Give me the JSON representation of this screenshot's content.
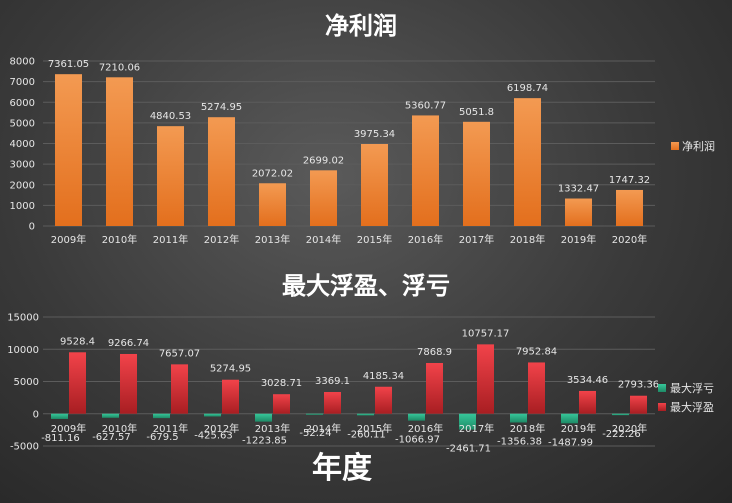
{
  "chart_data": [
    {
      "type": "bar",
      "title": "净利润",
      "categories": [
        "2009年",
        "2010年",
        "2011年",
        "2012年",
        "2013年",
        "2014年",
        "2015年",
        "2016年",
        "2017年",
        "2018年",
        "2019年",
        "2020年"
      ],
      "series": [
        {
          "name": "净利润",
          "values": [
            7361.05,
            7210.06,
            4840.53,
            5274.95,
            2072.02,
            2699.02,
            3975.34,
            5360.77,
            5051.8,
            6198.74,
            1332.47,
            1747.32
          ],
          "color": "#ec7a2c"
        }
      ],
      "ylim": [
        0,
        8000
      ],
      "yticks": [
        0,
        1000,
        2000,
        3000,
        4000,
        5000,
        6000,
        7000,
        8000
      ],
      "grid": true,
      "legend": "right"
    },
    {
      "type": "bar",
      "title": "最大浮盈、浮亏",
      "xlabel": "年度",
      "categories": [
        "2009年",
        "2010年",
        "2011年",
        "2012年",
        "2013年",
        "2014年",
        "2015年",
        "2016年",
        "2017年",
        "2018年",
        "2019年",
        "2020年"
      ],
      "series": [
        {
          "name": "最大浮亏",
          "values": [
            -811.16,
            -627.57,
            -679.5,
            -425.63,
            -1223.85,
            -52.24,
            -260.11,
            -1066.97,
            -2461.71,
            -1356.38,
            -1487.99,
            -222.26
          ],
          "labels": [
            "-811.16",
            "-627.57",
            "-679.5",
            "-425.63",
            "-1223.85",
            "-52.24",
            "-260.11",
            "-1066.97",
            "-2461.71",
            "-1356.38",
            "-1487.99",
            "-222.26"
          ],
          "color": "#2bb58a"
        },
        {
          "name": "最大浮盈",
          "values": [
            9528.4,
            9266.74,
            7657.07,
            5274.95,
            3028.71,
            3369.1,
            4185.34,
            7868.9,
            10757.17,
            7952.84,
            3534.46,
            2793.36
          ],
          "labels": [
            "9528.4",
            "9266.74",
            "7657.07",
            "5274.95",
            "3028.71",
            "3369.1",
            "4185.34",
            "7868.9",
            "10757.17",
            "7952.84",
            "3534.46",
            "2793.36"
          ],
          "color": "#e8383d"
        }
      ],
      "ylim": [
        -5000,
        15000
      ],
      "yticks": [
        -5000,
        0,
        5000,
        10000,
        15000
      ],
      "grid": true,
      "legend": "right"
    }
  ]
}
